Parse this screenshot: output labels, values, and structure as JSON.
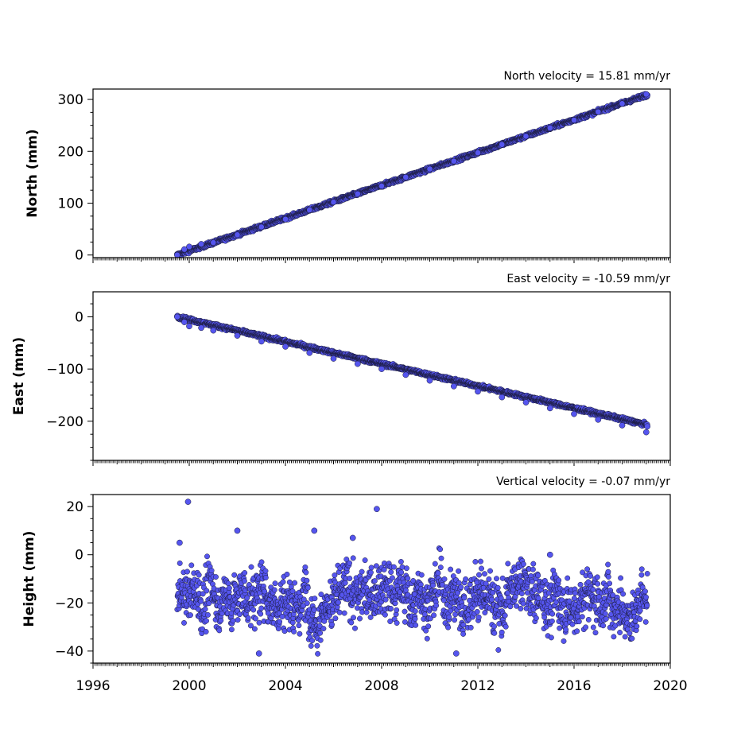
{
  "chart_data": [
    {
      "type": "scatter",
      "velocity_label": "North velocity = 15.81 mm/yr",
      "ylabel": "North (mm)",
      "xlim": [
        1996,
        2020
      ],
      "ylim": [
        -5,
        320
      ],
      "yticks": [
        0,
        100,
        200,
        300
      ],
      "ytick_labels": [
        "0",
        "100",
        "200",
        "300"
      ],
      "trend": {
        "t0": 1999.5,
        "v0": 0,
        "rate": 15.81,
        "t_end": 2019.05
      },
      "series": [
        {
          "x": [
            1999.5,
            1999.8,
            2000.0,
            2000.5,
            2001.0,
            2002.0,
            2003.0,
            2004.0,
            2005.0,
            2006.0,
            2007.0,
            2008.0,
            2009.0,
            2010.0,
            2011.0,
            2012.0,
            2013.0,
            2014.0,
            2015.0,
            2016.0,
            2017.0,
            2018.0,
            2019.0
          ],
          "y": [
            0,
            11,
            16,
            21,
            24,
            39,
            54,
            69,
            87,
            102,
            118,
            133,
            150,
            166,
            181,
            197,
            213,
            229,
            245,
            260,
            276,
            292,
            310
          ]
        }
      ]
    },
    {
      "type": "scatter",
      "velocity_label": "East velocity = -10.59 mm/yr",
      "ylabel": "East (mm)",
      "xlim": [
        1996,
        2020
      ],
      "ylim": [
        -275,
        48
      ],
      "yticks": [
        0,
        -100,
        -200
      ],
      "ytick_labels": [
        "0",
        "−100",
        "−200"
      ],
      "trend": {
        "t0": 1999.5,
        "v0": 0,
        "rate": -10.59,
        "t_end": 2019.05
      },
      "series": [
        {
          "x": [
            1999.5,
            1999.8,
            2000.0,
            2000.5,
            2001.0,
            2002.0,
            2003.0,
            2004.0,
            2005.0,
            2006.0,
            2007.0,
            2008.0,
            2009.0,
            2010.0,
            2011.0,
            2012.0,
            2013.0,
            2014.0,
            2015.0,
            2016.0,
            2017.0,
            2018.0,
            2019.0
          ],
          "y": [
            0,
            -10,
            -18,
            -21,
            -26,
            -36,
            -47,
            -57,
            -69,
            -80,
            -90,
            -100,
            -111,
            -122,
            -133,
            -143,
            -154,
            -164,
            -175,
            -186,
            -197,
            -208,
            -221
          ]
        }
      ]
    },
    {
      "type": "scatter",
      "velocity_label": "Vertical velocity = -0.07 mm/yr",
      "ylabel": "Height (mm)",
      "xlim": [
        1996,
        2020
      ],
      "ylim": [
        -45,
        25
      ],
      "yticks": [
        20,
        0,
        -20,
        -40
      ],
      "ytick_labels": [
        "20",
        "0",
        "−20",
        "−40"
      ],
      "xticks": [
        1996,
        2000,
        2004,
        2008,
        2012,
        2016,
        2020
      ],
      "xtick_labels": [
        "1996",
        "2000",
        "2004",
        "2008",
        "2012",
        "2016",
        "2020"
      ],
      "band": {
        "t0": 1999.5,
        "t_end": 2019.05,
        "mean": -17,
        "spread": 13
      },
      "series": [
        {
          "x": [
            1999.6,
            1999.95,
            2002.0,
            2002.9,
            2005.2,
            2006.8,
            2007.8,
            2011.1,
            2015.0
          ],
          "y": [
            5,
            22,
            10,
            -41,
            10,
            7,
            19,
            -41,
            0
          ]
        }
      ]
    }
  ]
}
